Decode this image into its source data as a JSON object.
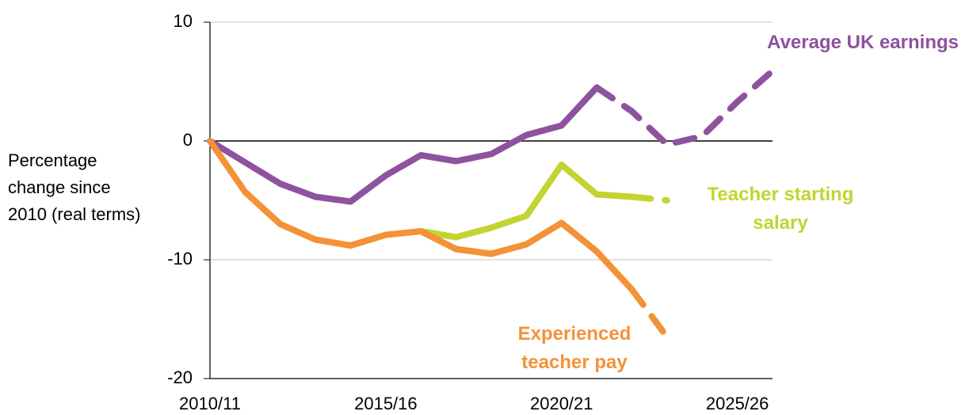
{
  "chart_data": {
    "type": "line",
    "y_label": "Percentage change since 2010 (real terms)",
    "categories": [
      "2010/11",
      null,
      null,
      null,
      null,
      "2015/16",
      null,
      null,
      null,
      null,
      "2020/21",
      null,
      null,
      null,
      null,
      "2025/26",
      null
    ],
    "series": [
      {
        "name": "Average UK earnings",
        "color": "#8e529e",
        "dashed_from": 11,
        "values": [
          0,
          -1.8,
          -3.6,
          -4.7,
          -5.1,
          -2.9,
          -1.2,
          -1.7,
          -1.1,
          0.5,
          1.3,
          4.5,
          2.5,
          -0.3,
          0.4,
          3.3,
          5.9
        ]
      },
      {
        "name": "Teacher starting salary",
        "color": "#c3d431",
        "dashed_from": 12,
        "values": [
          null,
          null,
          null,
          null,
          null,
          null,
          -7.6,
          -8.1,
          -7.3,
          -6.3,
          -2.0,
          -4.5,
          -4.7,
          -5.0,
          null,
          null,
          null
        ]
      },
      {
        "name": "Experienced teacher pay",
        "color": "#f39237",
        "dashed_from": 12,
        "values": [
          0,
          -4.3,
          -7.0,
          -8.3,
          -8.8,
          -7.9,
          -7.6,
          -9.1,
          -9.5,
          -8.7,
          -6.9,
          -9.3,
          -12.5,
          -16.5,
          null,
          null,
          null
        ]
      }
    ],
    "ylim": [
      -20,
      10
    ],
    "yticks": [
      -20,
      -10,
      0,
      10
    ],
    "grid": true
  }
}
